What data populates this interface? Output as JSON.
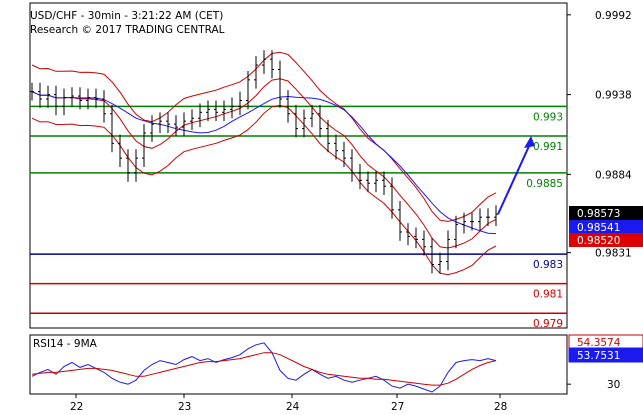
{
  "header": {
    "title": "USD/CHF - 30min - 3:21:22 AM (CET)",
    "copyright": "Research © 2017 TRADING CENTRAL"
  },
  "chart_data": [
    {
      "type": "candlestick",
      "symbol": "USD/CHF",
      "interval": "30min",
      "ylim": [
        0.978,
        1.0
      ],
      "price_ticks": [
        "0.9992",
        "0.9938",
        "0.9884",
        "0.9831"
      ],
      "x_ticks": [
        "22",
        "23",
        "24",
        "27",
        "28"
      ],
      "price_path": [
        0.994,
        0.9935,
        0.9938,
        0.993,
        0.9936,
        0.9937,
        0.9934,
        0.9936,
        0.9935,
        0.9925,
        0.9905,
        0.9895,
        0.9885,
        0.9895,
        0.9912,
        0.9918,
        0.992,
        0.9918,
        0.9916,
        0.992,
        0.9922,
        0.9926,
        0.9928,
        0.9926,
        0.9928,
        0.993,
        0.9934,
        0.9948,
        0.9958,
        0.9962,
        0.9955,
        0.9935,
        0.9925,
        0.9915,
        0.9922,
        0.9925,
        0.9915,
        0.9905,
        0.99,
        0.9895,
        0.9885,
        0.988,
        0.9878,
        0.988,
        0.9876,
        0.986,
        0.9845,
        0.9842,
        0.984,
        0.9835,
        0.9823,
        0.9825,
        0.984,
        0.985,
        0.9852,
        0.9852,
        0.9855,
        0.9855,
        0.9857
      ],
      "levels": [
        {
          "label": "0.993",
          "value": 0.993,
          "color": "#008000"
        },
        {
          "label": "0.991",
          "value": 0.991,
          "color": "#008000"
        },
        {
          "label": "0.9885",
          "value": 0.9885,
          "color": "#008000"
        },
        {
          "label": "0.983",
          "value": 0.983,
          "color": "#00008b"
        },
        {
          "label": "0.981",
          "value": 0.981,
          "color": "#cc0000"
        },
        {
          "label": "0.979",
          "value": 0.979,
          "color": "#cc0000"
        }
      ],
      "price_badges": [
        {
          "label": "0.98573",
          "value": 0.98573,
          "bg": "#000000",
          "fg": "#ffffff"
        },
        {
          "label": "0.98541",
          "value": 0.98541,
          "bg": "#1a1aee",
          "fg": "#ffffff"
        },
        {
          "label": "0.98520",
          "value": 0.9852,
          "bg": "#dd0000",
          "fg": "#ffffff"
        }
      ],
      "projection_arrow": {
        "from": 0.9857,
        "to": 0.991,
        "color": "#1a1aee"
      },
      "colors": {
        "bollinger": "#cc0000",
        "moving_average": "#1a1aee",
        "candles": "#000000"
      }
    },
    {
      "type": "line",
      "title": "RSI14 - 9MA",
      "ylim": [
        20,
        80
      ],
      "y_ticks": [
        "30"
      ],
      "series": [
        {
          "name": "RSI14",
          "color": "#1a1aee",
          "values": [
            38,
            42,
            45,
            40,
            48,
            52,
            47,
            50,
            46,
            42,
            36,
            32,
            30,
            34,
            44,
            50,
            54,
            52,
            50,
            55,
            58,
            54,
            56,
            52,
            55,
            57,
            60,
            66,
            70,
            72,
            62,
            44,
            36,
            34,
            40,
            45,
            40,
            36,
            38,
            34,
            32,
            34,
            36,
            38,
            34,
            28,
            26,
            30,
            28,
            25,
            22,
            28,
            42,
            52,
            54,
            55,
            54,
            56,
            54
          ]
        },
        {
          "name": "9MA",
          "color": "#cc0000",
          "values": [
            40,
            41,
            42,
            42,
            43,
            44,
            45,
            46,
            46,
            45,
            44,
            42,
            40,
            38,
            38,
            40,
            42,
            44,
            46,
            48,
            50,
            52,
            53,
            53,
            54,
            55,
            56,
            58,
            60,
            62,
            62,
            60,
            56,
            52,
            48,
            45,
            42,
            40,
            39,
            38,
            37,
            36,
            36,
            35,
            35,
            34,
            33,
            32,
            31,
            30,
            29,
            29,
            31,
            35,
            40,
            45,
            49,
            52,
            54
          ]
        }
      ],
      "badges": [
        {
          "label": "54.3574",
          "value": 54.3574,
          "bg": "#ffffff",
          "fg": "#cc0000"
        },
        {
          "label": "53.7531",
          "value": 53.7531,
          "bg": "#1a1aee",
          "fg": "#ffffff"
        }
      ]
    }
  ]
}
